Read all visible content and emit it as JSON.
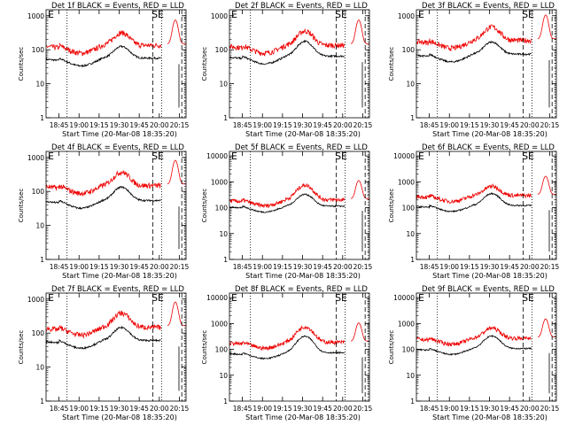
{
  "figure": {
    "start_time_label": "Start Time (20-Mar-08 18:35:20)",
    "ylabel": "Counts/sec",
    "colors": {
      "events": "#000000",
      "lld": "#ee0000",
      "axes": "#000000"
    },
    "x_tick_labels": [
      "18:45",
      "19:00",
      "19:15",
      "19:30",
      "19:45",
      "20:00",
      "20:15"
    ],
    "flags": {
      "E": "E",
      "S": "S",
      "SE": "SE"
    }
  },
  "chart_data": [
    {
      "type": "line",
      "title": "Det 1f BLACK = Events, RED = LLD",
      "yscale": "log",
      "y_ticks": [
        "1",
        "10",
        "100",
        "1000"
      ],
      "ylim": [
        1,
        1500
      ],
      "xlabel": "Start Time (20-Mar-08 18:35:20)",
      "ylabel": "Counts/sec",
      "series": [
        {
          "name": "Events",
          "color": "black",
          "base": 42,
          "peak": 110
        },
        {
          "name": "LLD",
          "color": "red",
          "base": 100,
          "peak": 280
        }
      ]
    },
    {
      "type": "line",
      "title": "Det 2f BLACK = Events, RED = LLD",
      "yscale": "log",
      "y_ticks": [
        "1",
        "10",
        "100",
        "1000"
      ],
      "ylim": [
        1,
        1500
      ],
      "xlabel": "Start Time (20-Mar-08 18:35:20)",
      "ylabel": "Counts/sec",
      "series": [
        {
          "name": "Events",
          "color": "black",
          "base": 48,
          "peak": 160
        },
        {
          "name": "LLD",
          "color": "red",
          "base": 100,
          "peak": 320
        }
      ]
    },
    {
      "type": "line",
      "title": "Det 3f BLACK = Events, RED = LLD",
      "yscale": "log",
      "y_ticks": [
        "1",
        "10",
        "100",
        "1000"
      ],
      "ylim": [
        1,
        1500
      ],
      "xlabel": "Start Time (20-Mar-08 18:35:20)",
      "ylabel": "Counts/sec",
      "series": [
        {
          "name": "Events",
          "color": "black",
          "base": 55,
          "peak": 150
        },
        {
          "name": "LLD",
          "color": "red",
          "base": 140,
          "peak": 420
        }
      ]
    },
    {
      "type": "line",
      "title": "Det 4f BLACK = Events, RED = LLD",
      "yscale": "log",
      "y_ticks": [
        "1",
        "10",
        "100",
        "1000"
      ],
      "ylim": [
        1,
        1500
      ],
      "xlabel": "Start Time (20-Mar-08 18:35:20)",
      "ylabel": "Counts/sec",
      "series": [
        {
          "name": "Events",
          "color": "black",
          "base": 40,
          "peak": 120
        },
        {
          "name": "LLD",
          "color": "red",
          "base": 110,
          "peak": 330
        }
      ]
    },
    {
      "type": "line",
      "title": "Det 5f BLACK = Events, RED = LLD",
      "yscale": "log",
      "y_ticks": [
        "1",
        "10",
        "100",
        "1000",
        "10000"
      ],
      "ylim": [
        1,
        15000
      ],
      "xlabel": "Start Time (20-Mar-08 18:35:20)",
      "ylabel": "Counts/sec",
      "series": [
        {
          "name": "Events",
          "color": "black",
          "base": 85,
          "peak": 300
        },
        {
          "name": "LLD",
          "color": "red",
          "base": 150,
          "peak": 700
        }
      ]
    },
    {
      "type": "line",
      "title": "Det 6f BLACK = Events, RED = LLD",
      "yscale": "log",
      "y_ticks": [
        "1",
        "10",
        "100",
        "1000",
        "10000"
      ],
      "ylim": [
        1,
        15000
      ],
      "xlabel": "Start Time (20-Mar-08 18:35:20)",
      "ylabel": "Counts/sec",
      "series": [
        {
          "name": "Events",
          "color": "black",
          "base": 90,
          "peak": 320
        },
        {
          "name": "LLD",
          "color": "red",
          "base": 220,
          "peak": 600
        }
      ]
    },
    {
      "type": "line",
      "title": "Det 7f BLACK = Events, RED = LLD",
      "yscale": "log",
      "y_ticks": [
        "1",
        "10",
        "100",
        "1000"
      ],
      "ylim": [
        1,
        1500
      ],
      "xlabel": "Start Time (20-Mar-08 18:35:20)",
      "ylabel": "Counts/sec",
      "series": [
        {
          "name": "Events",
          "color": "black",
          "base": 45,
          "peak": 130
        },
        {
          "name": "LLD",
          "color": "red",
          "base": 110,
          "peak": 350
        }
      ]
    },
    {
      "type": "line",
      "title": "Det 8f BLACK = Events, RED = LLD",
      "yscale": "log",
      "y_ticks": [
        "1",
        "10",
        "100",
        "1000",
        "10000"
      ],
      "ylim": [
        1,
        15000
      ],
      "xlabel": "Start Time (20-Mar-08 18:35:20)",
      "ylabel": "Counts/sec",
      "series": [
        {
          "name": "Events",
          "color": "black",
          "base": 55,
          "peak": 300
        },
        {
          "name": "LLD",
          "color": "red",
          "base": 140,
          "peak": 700
        }
      ]
    },
    {
      "type": "line",
      "title": "Det 9f BLACK = Events, RED = LLD",
      "yscale": "log",
      "y_ticks": [
        "1",
        "10",
        "100",
        "1000",
        "10000"
      ],
      "ylim": [
        1,
        15000
      ],
      "xlabel": "Start Time (20-Mar-08 18:35:20)",
      "ylabel": "Counts/sec",
      "series": [
        {
          "name": "Events",
          "color": "black",
          "base": 80,
          "peak": 300
        },
        {
          "name": "LLD",
          "color": "red",
          "base": 200,
          "peak": 600
        }
      ]
    }
  ]
}
